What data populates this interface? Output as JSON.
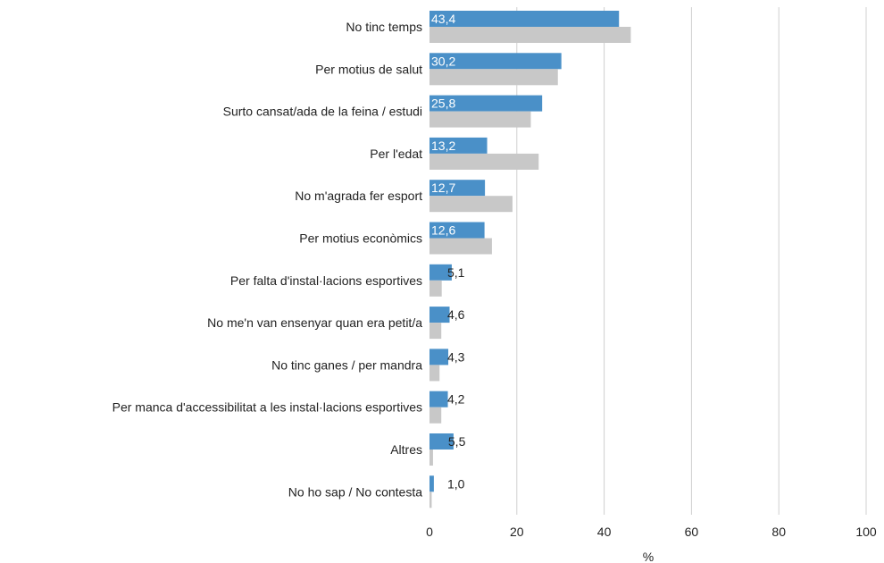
{
  "chart_data": {
    "type": "bar",
    "orientation": "horizontal",
    "categories": [
      "No tinc temps",
      "Per motius de salut",
      "Surto cansat/ada de la feina / estudi",
      "Per l'edat",
      "No m'agrada fer esport",
      "Per motius econòmics",
      "Per falta d'instal·lacions esportives",
      "No me'n van ensenyar quan era petit/a",
      "No tinc ganes / per mandra",
      "Per manca d'accessibilitat a les instal·lacions esportives",
      "Altres",
      "No ho sap / No contesta"
    ],
    "series": [
      {
        "color": "#4a90c8",
        "values": [
          43.4,
          30.2,
          25.8,
          13.2,
          12.7,
          12.6,
          5.1,
          4.6,
          4.3,
          4.2,
          5.5,
          1.0
        ],
        "labels": [
          "43,4",
          "30,2",
          "25,8",
          "13,2",
          "12,7",
          "12,6",
          "5,1",
          "4,6",
          "4,3",
          "4,2",
          "5,5",
          "1,0"
        ]
      },
      {
        "color": "#c8c8c8",
        "values": [
          46.1,
          29.4,
          23.2,
          25.0,
          19.0,
          14.3,
          2.8,
          2.7,
          2.3,
          2.7,
          0.8,
          0.5
        ]
      }
    ],
    "xlim": [
      0,
      100
    ],
    "xticks": [
      "0",
      "20",
      "40",
      "60",
      "80",
      "100"
    ],
    "xlabel": "%",
    "title": "",
    "grid": "vertical",
    "legend": "none"
  }
}
